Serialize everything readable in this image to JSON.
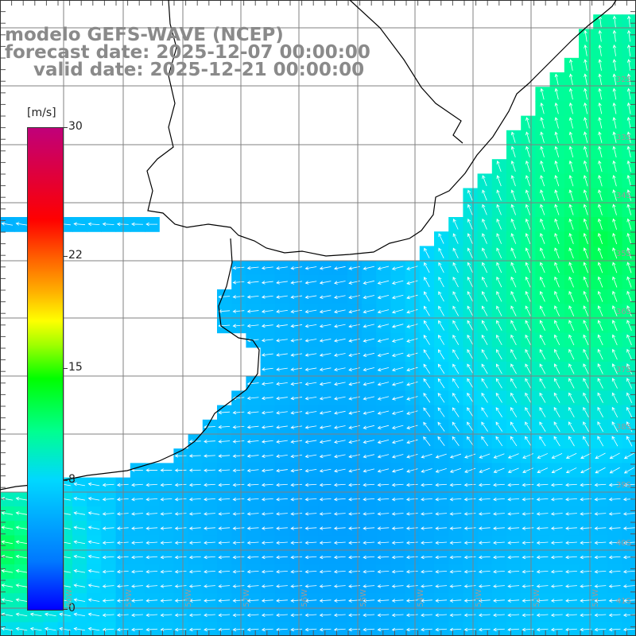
{
  "title": {
    "line1": "modelo GEFS-WAVE (NCEP)",
    "line2": "forecast date: 2025-12-07 00:00:00",
    "line3": "valid date: 2025-12-21 00:00:00"
  },
  "colorbar": {
    "unit": "[m/s]",
    "ticks": [
      {
        "label": "30",
        "value": 30
      },
      {
        "label": "22",
        "value": 22
      },
      {
        "label": "15",
        "value": 15
      },
      {
        "label": "8",
        "value": 8
      },
      {
        "label": "0",
        "value": 0
      }
    ],
    "min": 0,
    "max": 30
  },
  "map": {
    "variable": "wind speed",
    "units": "m/s",
    "lat_labels": [
      "32S",
      "33S",
      "34S",
      "35S",
      "36S",
      "37S",
      "38S",
      "39S",
      "40S",
      "41S"
    ],
    "lon_labels": [
      "60W",
      "59W",
      "58W",
      "57W",
      "56W",
      "55W",
      "54W",
      "53W",
      "52W",
      "51W"
    ],
    "colors": {
      "land": "#ffffff",
      "coast": "#000000",
      "grid": "#808080",
      "arrows": "#ffffff",
      "title": "#8a8a8a"
    }
  }
}
